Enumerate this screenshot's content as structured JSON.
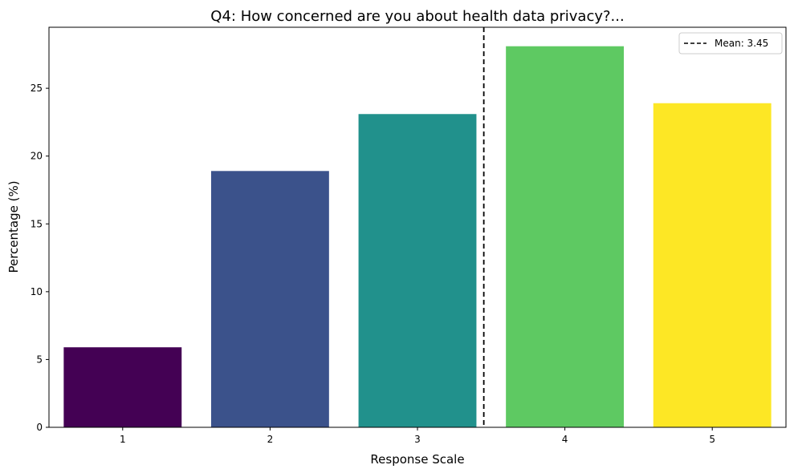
{
  "chart_data": {
    "type": "bar",
    "title": "Q4: How concerned are you about health data privacy?...",
    "xlabel": "Response Scale",
    "ylabel": "Percentage (%)",
    "categories": [
      "1",
      "2",
      "3",
      "4",
      "5"
    ],
    "values": [
      5.9,
      18.9,
      23.1,
      28.1,
      23.9
    ],
    "colors": [
      "#440154",
      "#3b528b",
      "#21918c",
      "#5ec962",
      "#fde725"
    ],
    "ylim": [
      0,
      29.5
    ],
    "yticks": [
      0,
      5,
      10,
      15,
      20,
      25
    ],
    "mean_line": {
      "label": "Mean: 3.45",
      "value": 3.45,
      "color": "#000000",
      "style": "dashed"
    },
    "legend_placement": "top-right",
    "grid": false
  }
}
